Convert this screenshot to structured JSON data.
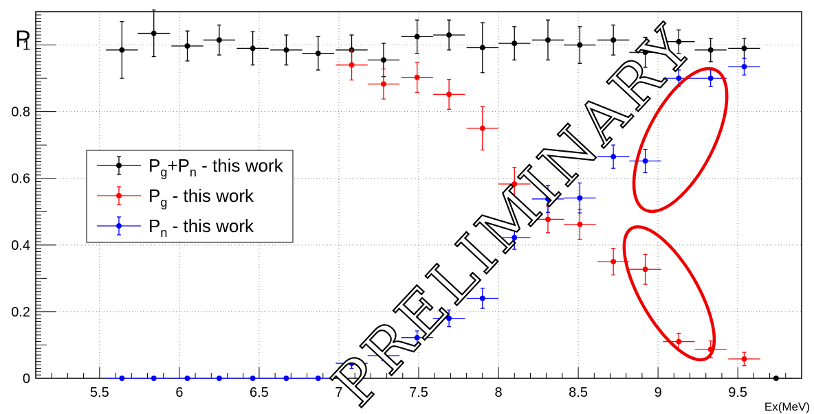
{
  "chart_data": {
    "type": "scatter",
    "ylabel": "P",
    "xlabel": "Ex(MeV)",
    "xlim": [
      5.1,
      9.9
    ],
    "ylim": [
      0,
      1.1
    ],
    "x_ticks": [
      "5.5",
      "6",
      "6.5",
      "7",
      "7.5",
      "8",
      "8.5",
      "9",
      "9.5"
    ],
    "y_ticks": [
      "0",
      "0.2",
      "0.4",
      "0.6",
      "0.8",
      "1"
    ],
    "grid": true,
    "legend_position": "left-middle",
    "watermark": "PRELIMINARY",
    "series": [
      {
        "name": "Pg+Pn - this work",
        "legend": {
          "main1": "P",
          "sub1": "g",
          "plus": "+",
          "main2": "P",
          "sub2": "n",
          "rest": " - this work"
        },
        "color": "#000000",
        "points": [
          {
            "x": 5.64,
            "y": 0.985,
            "xerr": 0.1,
            "yerr": 0.085
          },
          {
            "x": 5.84,
            "y": 1.035,
            "xerr": 0.1,
            "yerr": 0.07
          },
          {
            "x": 6.05,
            "y": 0.997,
            "xerr": 0.1,
            "yerr": 0.045
          },
          {
            "x": 6.25,
            "y": 1.015,
            "xerr": 0.1,
            "yerr": 0.045
          },
          {
            "x": 6.46,
            "y": 0.99,
            "xerr": 0.1,
            "yerr": 0.05
          },
          {
            "x": 6.67,
            "y": 0.985,
            "xerr": 0.1,
            "yerr": 0.045
          },
          {
            "x": 6.87,
            "y": 0.975,
            "xerr": 0.1,
            "yerr": 0.05
          },
          {
            "x": 7.08,
            "y": 0.985,
            "xerr": 0.1,
            "yerr": 0.045
          },
          {
            "x": 7.28,
            "y": 0.955,
            "xerr": 0.1,
            "yerr": 0.05
          },
          {
            "x": 7.49,
            "y": 1.025,
            "xerr": 0.1,
            "yerr": 0.05
          },
          {
            "x": 7.69,
            "y": 1.03,
            "xerr": 0.1,
            "yerr": 0.045
          },
          {
            "x": 7.9,
            "y": 0.992,
            "xerr": 0.1,
            "yerr": 0.075
          },
          {
            "x": 8.1,
            "y": 1.005,
            "xerr": 0.1,
            "yerr": 0.05
          },
          {
            "x": 8.31,
            "y": 1.015,
            "xerr": 0.1,
            "yerr": 0.06
          },
          {
            "x": 8.51,
            "y": 1.0,
            "xerr": 0.1,
            "yerr": 0.055
          },
          {
            "x": 8.72,
            "y": 1.015,
            "xerr": 0.1,
            "yerr": 0.045
          },
          {
            "x": 8.92,
            "y": 0.978,
            "xerr": 0.1,
            "yerr": 0.045
          },
          {
            "x": 9.13,
            "y": 1.01,
            "xerr": 0.1,
            "yerr": 0.035
          },
          {
            "x": 9.33,
            "y": 0.985,
            "xerr": 0.1,
            "yerr": 0.035
          },
          {
            "x": 9.54,
            "y": 0.99,
            "xerr": 0.1,
            "yerr": 0.03
          },
          {
            "x": 9.74,
            "y": 0.0,
            "xerr": 0.1,
            "yerr": 0.0
          }
        ]
      },
      {
        "name": "Pg - this work",
        "legend": {
          "main1": "P",
          "sub1": "g",
          "rest": " - this work"
        },
        "color": "#ff0000",
        "points": [
          {
            "x": 7.08,
            "y": 0.94,
            "xerr": 0.1,
            "yerr": 0.045
          },
          {
            "x": 7.28,
            "y": 0.883,
            "xerr": 0.1,
            "yerr": 0.045
          },
          {
            "x": 7.49,
            "y": 0.903,
            "xerr": 0.1,
            "yerr": 0.045
          },
          {
            "x": 7.69,
            "y": 0.852,
            "xerr": 0.1,
            "yerr": 0.045
          },
          {
            "x": 7.9,
            "y": 0.75,
            "xerr": 0.1,
            "yerr": 0.065
          },
          {
            "x": 8.1,
            "y": 0.583,
            "xerr": 0.1,
            "yerr": 0.05
          },
          {
            "x": 8.31,
            "y": 0.477,
            "xerr": 0.1,
            "yerr": 0.04
          },
          {
            "x": 8.51,
            "y": 0.462,
            "xerr": 0.1,
            "yerr": 0.045
          },
          {
            "x": 8.72,
            "y": 0.35,
            "xerr": 0.1,
            "yerr": 0.04
          },
          {
            "x": 8.92,
            "y": 0.327,
            "xerr": 0.1,
            "yerr": 0.045
          },
          {
            "x": 9.13,
            "y": 0.11,
            "xerr": 0.1,
            "yerr": 0.025
          },
          {
            "x": 9.33,
            "y": 0.087,
            "xerr": 0.1,
            "yerr": 0.025
          },
          {
            "x": 9.54,
            "y": 0.058,
            "xerr": 0.1,
            "yerr": 0.02
          }
        ]
      },
      {
        "name": "Pn - this work",
        "legend": {
          "main1": "P",
          "sub1": "n",
          "rest": " - this work"
        },
        "color": "#0000ff",
        "points": [
          {
            "x": 5.64,
            "y": 0.0,
            "xerr": 0.1,
            "yerr": 0.0
          },
          {
            "x": 5.84,
            "y": 0.0,
            "xerr": 0.1,
            "yerr": 0.0
          },
          {
            "x": 6.05,
            "y": 0.0,
            "xerr": 0.1,
            "yerr": 0.0
          },
          {
            "x": 6.25,
            "y": 0.0,
            "xerr": 0.1,
            "yerr": 0.0
          },
          {
            "x": 6.46,
            "y": 0.0,
            "xerr": 0.1,
            "yerr": 0.0
          },
          {
            "x": 6.67,
            "y": 0.0,
            "xerr": 0.1,
            "yerr": 0.0
          },
          {
            "x": 6.87,
            "y": 0.0,
            "xerr": 0.1,
            "yerr": 0.0
          },
          {
            "x": 7.08,
            "y": 0.045,
            "xerr": 0.1,
            "yerr": 0.015
          },
          {
            "x": 7.28,
            "y": 0.068,
            "xerr": 0.1,
            "yerr": 0.015
          },
          {
            "x": 7.49,
            "y": 0.122,
            "xerr": 0.1,
            "yerr": 0.02
          },
          {
            "x": 7.69,
            "y": 0.18,
            "xerr": 0.1,
            "yerr": 0.025
          },
          {
            "x": 7.9,
            "y": 0.24,
            "xerr": 0.1,
            "yerr": 0.03
          },
          {
            "x": 8.1,
            "y": 0.422,
            "xerr": 0.1,
            "yerr": 0.035
          },
          {
            "x": 8.31,
            "y": 0.538,
            "xerr": 0.1,
            "yerr": 0.04
          },
          {
            "x": 8.51,
            "y": 0.541,
            "xerr": 0.1,
            "yerr": 0.045
          },
          {
            "x": 8.72,
            "y": 0.665,
            "xerr": 0.1,
            "yerr": 0.035
          },
          {
            "x": 8.92,
            "y": 0.652,
            "xerr": 0.1,
            "yerr": 0.035
          },
          {
            "x": 9.13,
            "y": 0.9,
            "xerr": 0.1,
            "yerr": 0.025
          },
          {
            "x": 9.33,
            "y": 0.9,
            "xerr": 0.1,
            "yerr": 0.025
          },
          {
            "x": 9.54,
            "y": 0.935,
            "xerr": 0.1,
            "yerr": 0.025
          }
        ]
      }
    ],
    "annotations": [
      {
        "type": "ellipse",
        "color": "#ee0000",
        "cx": 9.14,
        "cy": 0.715,
        "rx": 0.21,
        "ry": 0.235,
        "rotation_deg": 27
      },
      {
        "type": "ellipse",
        "color": "#ee0000",
        "cx": 9.07,
        "cy": 0.255,
        "rx": 0.18,
        "ry": 0.225,
        "rotation_deg": -30
      }
    ]
  }
}
